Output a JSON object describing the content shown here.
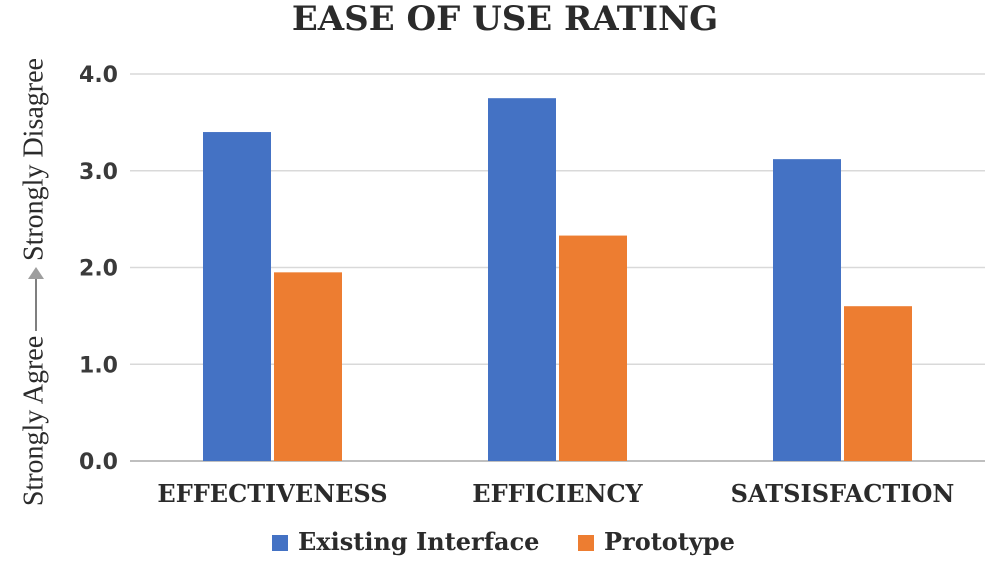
{
  "chart_data": {
    "type": "bar",
    "title": "EASE OF USE RATING",
    "ylabel_low": "Strongly Agree",
    "ylabel_high": "Strongly Disagree",
    "xlabel": "",
    "categories": [
      "EFFECTIVENESS",
      "EFFICIENCY",
      "SATSISFACTION"
    ],
    "series": [
      {
        "name": "Existing Interface",
        "color": "#4472C4",
        "values": [
          3.4,
          3.75,
          3.12
        ]
      },
      {
        "name": "Prototype",
        "color": "#ED7D31",
        "values": [
          1.95,
          2.33,
          1.6
        ]
      }
    ],
    "ylim": [
      0,
      4
    ],
    "yticks": [
      "0.0",
      "1.0",
      "2.0",
      "3.0",
      "4.0"
    ],
    "grid": true,
    "legend": "bottom-center"
  }
}
